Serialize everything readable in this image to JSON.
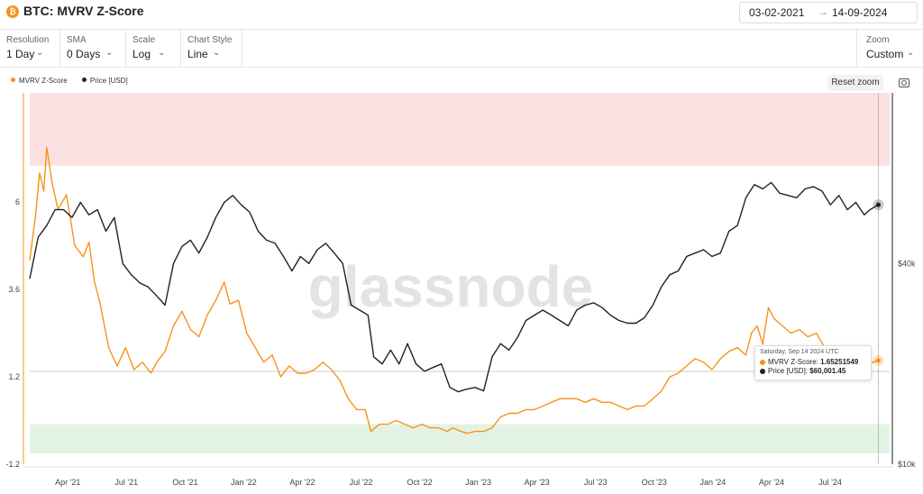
{
  "header": {
    "title": "BTC: MVRV Z-Score",
    "logo_glyph": "₿",
    "date_from": "03-02-2021",
    "date_arrow": "→",
    "date_to": "14-09-2024"
  },
  "controls": {
    "resolution": {
      "label": "Resolution",
      "value": "1 Day"
    },
    "sma": {
      "label": "SMA",
      "value": "0 Days"
    },
    "scale": {
      "label": "Scale",
      "value": "Log"
    },
    "chart_style": {
      "label": "Chart Style",
      "value": "Line"
    },
    "zoom": {
      "label": "Zoom",
      "value": "Custom"
    }
  },
  "legend": [
    {
      "name": "MVRV Z-Score",
      "color": "#f7931a"
    },
    {
      "name": "Price [USD]",
      "color": "#222222"
    }
  ],
  "reset_zoom": "Reset zoom",
  "watermark": "glassnode",
  "tooltip": {
    "date": "Saturday, Sep 14 2024 UTC",
    "zscore_label": "MVRV Z-Score:",
    "zscore_value": "1.65251549",
    "price_label": "Price [USD]:",
    "price_value": "$60,001.45"
  },
  "chart_data": {
    "type": "line",
    "x_ticks": [
      "Apr '21",
      "Jul '21",
      "Oct '21",
      "Jan '22",
      "Apr '22",
      "Jul '22",
      "Oct '22",
      "Jan '23",
      "Apr '23",
      "Jul '23",
      "Oct '23",
      "Jan '24",
      "Apr '24",
      "Jul '24"
    ],
    "y_left_ticks": [
      "6",
      "3.6",
      "1.2",
      "-1.2"
    ],
    "y_right_ticks": [
      "$40k",
      "$10k"
    ],
    "y_right_scale": "log",
    "bands": [
      {
        "name": "overvalued zone",
        "color": "#fbe0e0",
        "range": [
          7,
          9
        ]
      },
      {
        "name": "undervalued zone",
        "color": "#e3f3e3",
        "range": [
          -0.9,
          -0.1
        ]
      }
    ],
    "series": [
      {
        "name": "MVRV Z-Score",
        "color": "#f7931a",
        "axis": "left",
        "values": [
          [
            0,
            4.4
          ],
          [
            0.2,
            5.6
          ],
          [
            0.35,
            6.8
          ],
          [
            0.5,
            6.3
          ],
          [
            0.6,
            7.5
          ],
          [
            0.8,
            6.5
          ],
          [
            1.0,
            5.8
          ],
          [
            1.3,
            6.2
          ],
          [
            1.6,
            4.8
          ],
          [
            1.9,
            4.5
          ],
          [
            2.1,
            4.9
          ],
          [
            2.3,
            3.8
          ],
          [
            2.5,
            3.2
          ],
          [
            2.8,
            2.0
          ],
          [
            3.1,
            1.5
          ],
          [
            3.4,
            2.0
          ],
          [
            3.7,
            1.4
          ],
          [
            4.0,
            1.6
          ],
          [
            4.3,
            1.3
          ],
          [
            4.5,
            1.6
          ],
          [
            4.8,
            1.9
          ],
          [
            5.1,
            2.6
          ],
          [
            5.4,
            3.0
          ],
          [
            5.7,
            2.5
          ],
          [
            6.0,
            2.3
          ],
          [
            6.3,
            2.9
          ],
          [
            6.6,
            3.3
          ],
          [
            6.9,
            3.8
          ],
          [
            7.1,
            3.2
          ],
          [
            7.4,
            3.3
          ],
          [
            7.7,
            2.4
          ],
          [
            8.0,
            2.0
          ],
          [
            8.3,
            1.6
          ],
          [
            8.6,
            1.8
          ],
          [
            8.9,
            1.2
          ],
          [
            9.2,
            1.5
          ],
          [
            9.5,
            1.3
          ],
          [
            9.8,
            1.3
          ],
          [
            10.1,
            1.4
          ],
          [
            10.4,
            1.6
          ],
          [
            10.7,
            1.4
          ],
          [
            11.0,
            1.1
          ],
          [
            11.3,
            0.6
          ],
          [
            11.6,
            0.3
          ],
          [
            11.9,
            0.3
          ],
          [
            12.1,
            -0.3
          ],
          [
            12.4,
            -0.1
          ],
          [
            12.7,
            -0.1
          ],
          [
            13.0,
            0.0
          ],
          [
            13.3,
            -0.1
          ],
          [
            13.6,
            -0.2
          ],
          [
            13.9,
            -0.1
          ],
          [
            14.2,
            -0.2
          ],
          [
            14.5,
            -0.2
          ],
          [
            14.8,
            -0.3
          ],
          [
            15.0,
            -0.2
          ],
          [
            15.3,
            -0.3
          ],
          [
            15.5,
            -0.35
          ],
          [
            15.8,
            -0.3
          ],
          [
            16.1,
            -0.3
          ],
          [
            16.4,
            -0.2
          ],
          [
            16.7,
            0.1
          ],
          [
            17.0,
            0.2
          ],
          [
            17.3,
            0.2
          ],
          [
            17.6,
            0.3
          ],
          [
            17.9,
            0.3
          ],
          [
            18.2,
            0.4
          ],
          [
            18.5,
            0.5
          ],
          [
            18.8,
            0.6
          ],
          [
            19.1,
            0.6
          ],
          [
            19.4,
            0.6
          ],
          [
            19.7,
            0.5
          ],
          [
            20.0,
            0.6
          ],
          [
            20.3,
            0.5
          ],
          [
            20.6,
            0.5
          ],
          [
            20.9,
            0.4
          ],
          [
            21.2,
            0.3
          ],
          [
            21.5,
            0.4
          ],
          [
            21.8,
            0.4
          ],
          [
            22.1,
            0.6
          ],
          [
            22.4,
            0.8
          ],
          [
            22.7,
            1.2
          ],
          [
            23.0,
            1.3
          ],
          [
            23.3,
            1.5
          ],
          [
            23.6,
            1.7
          ],
          [
            23.9,
            1.6
          ],
          [
            24.2,
            1.4
          ],
          [
            24.5,
            1.7
          ],
          [
            24.8,
            1.9
          ],
          [
            25.1,
            2.0
          ],
          [
            25.4,
            1.8
          ],
          [
            25.6,
            2.4
          ],
          [
            25.8,
            2.6
          ],
          [
            26.0,
            2.1
          ],
          [
            26.2,
            3.1
          ],
          [
            26.4,
            2.8
          ],
          [
            26.7,
            2.6
          ],
          [
            27.0,
            2.4
          ],
          [
            27.3,
            2.5
          ],
          [
            27.6,
            2.3
          ],
          [
            27.9,
            2.4
          ],
          [
            28.2,
            2.0
          ],
          [
            28.5,
            1.8
          ],
          [
            28.8,
            1.9
          ],
          [
            29.1,
            1.7
          ],
          [
            29.4,
            1.8
          ],
          [
            29.7,
            1.6
          ],
          [
            29.9,
            1.6
          ],
          [
            30.1,
            1.65
          ]
        ]
      },
      {
        "name": "Price [USD]",
        "color": "#222222",
        "axis": "right",
        "values": [
          [
            0,
            36000
          ],
          [
            0.3,
            48000
          ],
          [
            0.6,
            52000
          ],
          [
            0.9,
            58000
          ],
          [
            1.2,
            58000
          ],
          [
            1.5,
            55000
          ],
          [
            1.8,
            61000
          ],
          [
            2.1,
            56000
          ],
          [
            2.4,
            58000
          ],
          [
            2.7,
            50000
          ],
          [
            3.0,
            55000
          ],
          [
            3.3,
            40000
          ],
          [
            3.6,
            37000
          ],
          [
            3.9,
            35000
          ],
          [
            4.2,
            34000
          ],
          [
            4.5,
            32000
          ],
          [
            4.8,
            30000
          ],
          [
            5.1,
            40000
          ],
          [
            5.4,
            45000
          ],
          [
            5.7,
            47000
          ],
          [
            6.0,
            43000
          ],
          [
            6.3,
            48000
          ],
          [
            6.6,
            55000
          ],
          [
            6.9,
            61000
          ],
          [
            7.2,
            64000
          ],
          [
            7.5,
            60000
          ],
          [
            7.8,
            57000
          ],
          [
            8.1,
            50000
          ],
          [
            8.4,
            47000
          ],
          [
            8.7,
            46000
          ],
          [
            9.0,
            42000
          ],
          [
            9.3,
            38000
          ],
          [
            9.6,
            42000
          ],
          [
            9.9,
            40000
          ],
          [
            10.2,
            44000
          ],
          [
            10.5,
            46000
          ],
          [
            10.8,
            43000
          ],
          [
            11.1,
            40000
          ],
          [
            11.4,
            30000
          ],
          [
            11.7,
            29000
          ],
          [
            12.0,
            28000
          ],
          [
            12.2,
            21000
          ],
          [
            12.5,
            20000
          ],
          [
            12.8,
            22000
          ],
          [
            13.1,
            20000
          ],
          [
            13.4,
            23000
          ],
          [
            13.7,
            20000
          ],
          [
            14.0,
            19000
          ],
          [
            14.3,
            19500
          ],
          [
            14.6,
            20000
          ],
          [
            14.9,
            17000
          ],
          [
            15.2,
            16500
          ],
          [
            15.5,
            16800
          ],
          [
            15.8,
            17000
          ],
          [
            16.1,
            16600
          ],
          [
            16.4,
            21000
          ],
          [
            16.7,
            23000
          ],
          [
            17.0,
            22000
          ],
          [
            17.3,
            24000
          ],
          [
            17.6,
            27000
          ],
          [
            17.9,
            28000
          ],
          [
            18.2,
            29000
          ],
          [
            18.5,
            28000
          ],
          [
            18.8,
            27000
          ],
          [
            19.1,
            26000
          ],
          [
            19.4,
            29000
          ],
          [
            19.7,
            30000
          ],
          [
            20.0,
            30500
          ],
          [
            20.3,
            29500
          ],
          [
            20.6,
            28000
          ],
          [
            20.9,
            27000
          ],
          [
            21.2,
            26500
          ],
          [
            21.5,
            26500
          ],
          [
            21.8,
            27500
          ],
          [
            22.1,
            30000
          ],
          [
            22.4,
            34000
          ],
          [
            22.7,
            37000
          ],
          [
            23.0,
            38000
          ],
          [
            23.3,
            42000
          ],
          [
            23.6,
            43000
          ],
          [
            23.9,
            44000
          ],
          [
            24.2,
            42000
          ],
          [
            24.5,
            43000
          ],
          [
            24.8,
            50000
          ],
          [
            25.1,
            52000
          ],
          [
            25.4,
            63000
          ],
          [
            25.7,
            69000
          ],
          [
            26.0,
            67000
          ],
          [
            26.3,
            70000
          ],
          [
            26.6,
            65000
          ],
          [
            26.9,
            64000
          ],
          [
            27.2,
            63000
          ],
          [
            27.5,
            67000
          ],
          [
            27.8,
            68000
          ],
          [
            28.1,
            66000
          ],
          [
            28.4,
            60000
          ],
          [
            28.7,
            64000
          ],
          [
            29.0,
            58000
          ],
          [
            29.3,
            61000
          ],
          [
            29.6,
            56000
          ],
          [
            29.8,
            58000
          ],
          [
            30.1,
            60001.45
          ]
        ]
      }
    ]
  }
}
